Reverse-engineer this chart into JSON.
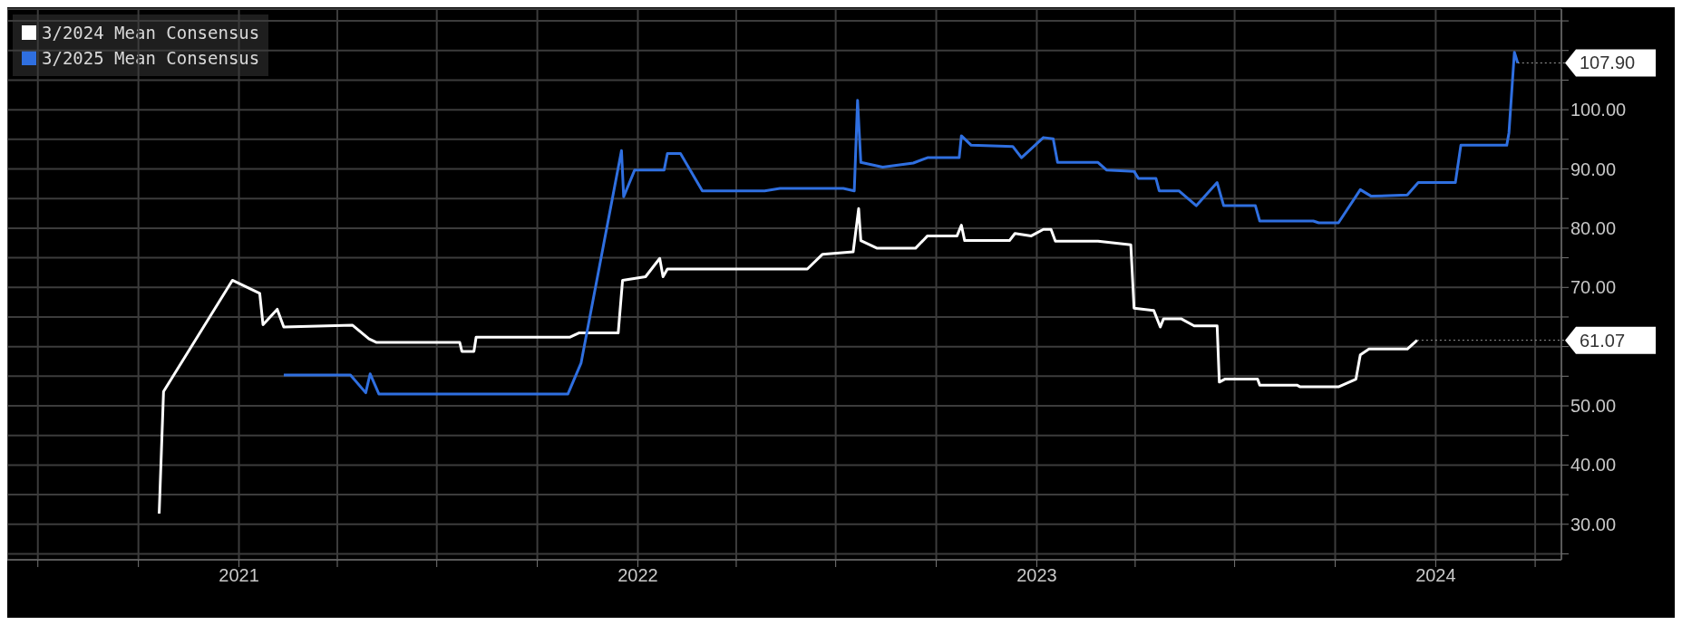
{
  "chart_data": {
    "type": "line",
    "legend": "top left",
    "grid": true,
    "xlim": [
      "2020-06-03",
      "2024-04-25"
    ],
    "xticks": [
      {
        "value": "2020-07-01",
        "label": null
      },
      {
        "value": "2020-10-01",
        "label": null
      },
      {
        "value": "2021-01-01",
        "label": "2021"
      },
      {
        "value": "2021-04-01",
        "label": null
      },
      {
        "value": "2021-07-01",
        "label": null
      },
      {
        "value": "2021-10-01",
        "label": null
      },
      {
        "value": "2022-01-01",
        "label": "2022"
      },
      {
        "value": "2022-04-01",
        "label": null
      },
      {
        "value": "2022-07-01",
        "label": null
      },
      {
        "value": "2022-10-01",
        "label": null
      },
      {
        "value": "2023-01-01",
        "label": "2023"
      },
      {
        "value": "2023-04-01",
        "label": null
      },
      {
        "value": "2023-07-01",
        "label": null
      },
      {
        "value": "2023-10-01",
        "label": null
      },
      {
        "value": "2024-01-01",
        "label": "2024"
      },
      {
        "value": "2024-04-01",
        "label": null
      }
    ],
    "ylim": [
      24,
      117
    ],
    "yticks": [
      {
        "value": 25,
        "label": null
      },
      {
        "value": 30,
        "label": "30.00"
      },
      {
        "value": 35,
        "label": null
      },
      {
        "value": 40,
        "label": "40.00"
      },
      {
        "value": 45,
        "label": null
      },
      {
        "value": 50,
        "label": "50.00"
      },
      {
        "value": 55,
        "label": null
      },
      {
        "value": 60,
        "label": null
      },
      {
        "value": 65,
        "label": null
      },
      {
        "value": 70,
        "label": "70.00"
      },
      {
        "value": 75,
        "label": null
      },
      {
        "value": 80,
        "label": "80.00"
      },
      {
        "value": 85,
        "label": null
      },
      {
        "value": 90,
        "label": "90.00"
      },
      {
        "value": 95,
        "label": null
      },
      {
        "value": 100,
        "label": "100.00"
      },
      {
        "value": 105,
        "label": null
      },
      {
        "value": 110,
        "label": null
      },
      {
        "value": 115,
        "label": null
      }
    ],
    "series": [
      {
        "name": "3/2024 Mean Consensus",
        "color": "#ffffff",
        "x": [
          "2020-10-20",
          "2020-10-24",
          "2020-12-26",
          "2021-01-20",
          "2021-01-23",
          "2021-02-05",
          "2021-02-11",
          "2021-04-15",
          "2021-04-30",
          "2021-05-07",
          "2021-07-22",
          "2021-07-24",
          "2021-08-04",
          "2021-08-06",
          "2021-10-31",
          "2021-11-08",
          "2021-12-14",
          "2021-12-18",
          "2022-01-08",
          "2022-01-21",
          "2022-01-24",
          "2022-01-28",
          "2022-06-05",
          "2022-06-19",
          "2022-07-17",
          "2022-07-22",
          "2022-07-24",
          "2022-08-08",
          "2022-09-12",
          "2022-09-23",
          "2022-10-20",
          "2022-10-24",
          "2022-10-27",
          "2022-12-07",
          "2022-12-12",
          "2022-12-27",
          "2023-01-07",
          "2023-01-14",
          "2023-01-18",
          "2023-02-26",
          "2023-03-28",
          "2023-03-31",
          "2023-04-18",
          "2023-04-24",
          "2023-04-27",
          "2023-05-13",
          "2023-05-25",
          "2023-06-15",
          "2023-06-17",
          "2023-06-22",
          "2023-07-22",
          "2023-07-24",
          "2023-08-27",
          "2023-08-30",
          "2023-10-04",
          "2023-10-20",
          "2023-10-24",
          "2023-11-01",
          "2023-12-06",
          "2023-12-15"
        ],
        "values": [
          31.8,
          52.4,
          71.2,
          69.0,
          63.7,
          66.3,
          63.3,
          63.6,
          61.3,
          60.7,
          60.7,
          59.2,
          59.2,
          61.6,
          61.6,
          62.3,
          62.3,
          71.2,
          71.8,
          74.9,
          71.8,
          73.1,
          73.1,
          75.6,
          76.0,
          83.3,
          77.9,
          76.6,
          76.6,
          78.7,
          78.7,
          80.5,
          77.9,
          77.9,
          79.1,
          78.7,
          79.8,
          79.8,
          77.8,
          77.8,
          77.2,
          66.5,
          66.1,
          63.3,
          64.7,
          64.7,
          63.5,
          63.5,
          54.0,
          54.5,
          54.5,
          53.5,
          53.5,
          53.2,
          53.2,
          54.5,
          58.6,
          59.6,
          59.6,
          61.07
        ]
      },
      {
        "name": "3/2025 Mean Consensus",
        "color": "#2f6fe0",
        "x": [
          "2021-02-11",
          "2021-04-13",
          "2021-04-27",
          "2021-05-01",
          "2021-05-09",
          "2021-10-29",
          "2021-11-10",
          "2021-12-17",
          "2021-12-19",
          "2021-12-29",
          "2022-01-25",
          "2022-01-28",
          "2022-02-09",
          "2022-03-01",
          "2022-04-27",
          "2022-05-11",
          "2022-07-08",
          "2022-07-18",
          "2022-07-21",
          "2022-07-24",
          "2022-08-13",
          "2022-09-10",
          "2022-09-23",
          "2022-10-22",
          "2022-10-24",
          "2022-11-02",
          "2022-12-10",
          "2022-12-18",
          "2023-01-07",
          "2023-01-16",
          "2023-01-20",
          "2023-02-26",
          "2023-03-06",
          "2023-03-31",
          "2023-04-04",
          "2023-04-20",
          "2023-04-23",
          "2023-05-11",
          "2023-05-27",
          "2023-06-15",
          "2023-06-21",
          "2023-07-20",
          "2023-07-24",
          "2023-09-11",
          "2023-09-16",
          "2023-10-04",
          "2023-10-24",
          "2023-11-03",
          "2023-12-06",
          "2023-12-16",
          "2024-01-19",
          "2024-01-24",
          "2024-03-06",
          "2024-03-08",
          "2024-03-13",
          "2024-03-16"
        ],
        "values": [
          55.2,
          55.2,
          52.2,
          55.4,
          52.0,
          52.0,
          57.2,
          93.1,
          85.3,
          89.8,
          89.8,
          92.6,
          92.6,
          86.3,
          86.3,
          86.7,
          86.7,
          86.3,
          101.6,
          91.1,
          90.3,
          91.0,
          91.9,
          91.9,
          95.6,
          94.0,
          93.8,
          91.9,
          95.3,
          95.1,
          91.1,
          91.1,
          89.8,
          89.6,
          88.4,
          88.4,
          86.3,
          86.3,
          83.8,
          87.7,
          83.8,
          83.8,
          81.2,
          81.2,
          80.9,
          80.9,
          86.5,
          85.4,
          85.6,
          87.7,
          87.7,
          94.0,
          94.0,
          96.1,
          109.7,
          107.9
        ]
      }
    ],
    "annotations": [
      {
        "text": "107.90",
        "x": "2024-03-16",
        "y": 107.9
      },
      {
        "text": "61.07",
        "x": "2023-12-15",
        "y": 61.07
      }
    ]
  }
}
